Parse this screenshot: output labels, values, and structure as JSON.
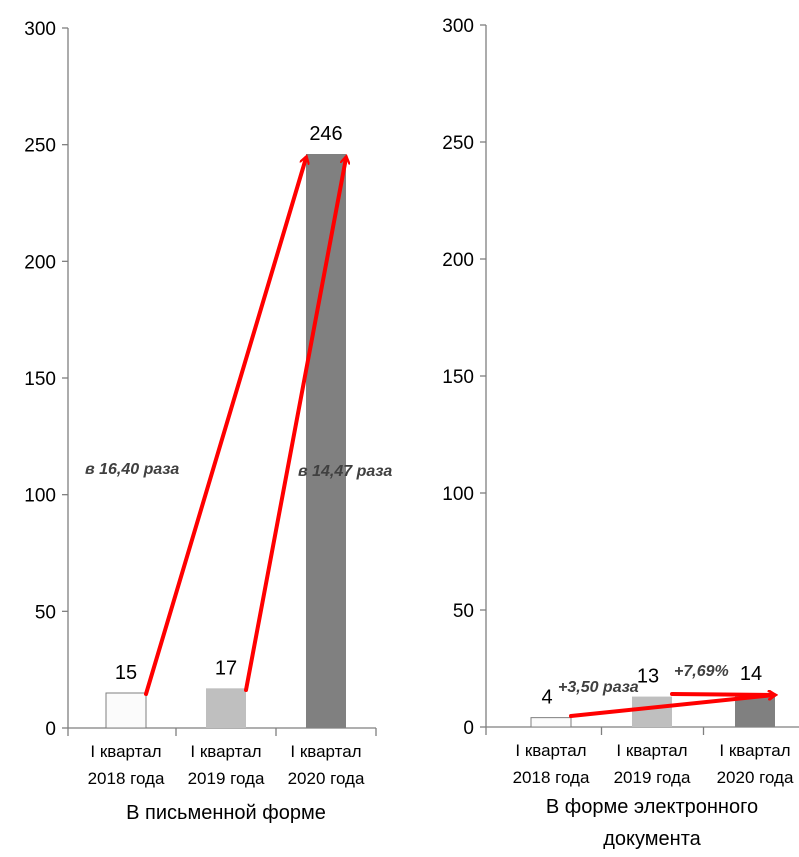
{
  "colors": {
    "axis": "#7f7f7f",
    "text": "#000000",
    "arrow": "#ff0000",
    "annotation": "#404040",
    "bar_2018": "#fbfbfb",
    "bar_2019": "#bfbfbf",
    "bar_2020": "#808080"
  },
  "chart_data": [
    {
      "type": "bar",
      "title": "В письменной форме",
      "categories": [
        [
          "I квартал",
          "2018 года"
        ],
        [
          "I квартал",
          "2019 года"
        ],
        [
          "I квартал",
          "2020 года"
        ]
      ],
      "values": [
        15,
        17,
        246
      ],
      "data_labels": [
        "15",
        "17",
        "246"
      ],
      "ylim": [
        0,
        300
      ],
      "yticks": [
        "0",
        "50",
        "100",
        "150",
        "200",
        "250",
        "300"
      ],
      "grid": false,
      "annotations": [
        {
          "text": "в 16,40 раза",
          "from": 0,
          "to": 2
        },
        {
          "text": "в 14,47 раза",
          "from": 1,
          "to": 2
        }
      ]
    },
    {
      "type": "bar",
      "title": "В форме электронного документа",
      "title_lines": [
        "В форме электронного",
        "документа"
      ],
      "categories": [
        [
          "I квартал",
          "2018 года"
        ],
        [
          "I квартал",
          "2019 года"
        ],
        [
          "I квартал",
          "2020 года"
        ]
      ],
      "values": [
        4,
        13,
        14
      ],
      "data_labels": [
        "4",
        "13",
        "14"
      ],
      "ylim": [
        0,
        300
      ],
      "yticks": [
        "0",
        "50",
        "100",
        "150",
        "200",
        "250",
        "300"
      ],
      "grid": false,
      "annotations": [
        {
          "text": "+3,50 раза",
          "from": 0,
          "to": 2
        },
        {
          "text": "+7,69%",
          "from": 1,
          "to": 2
        }
      ]
    }
  ]
}
